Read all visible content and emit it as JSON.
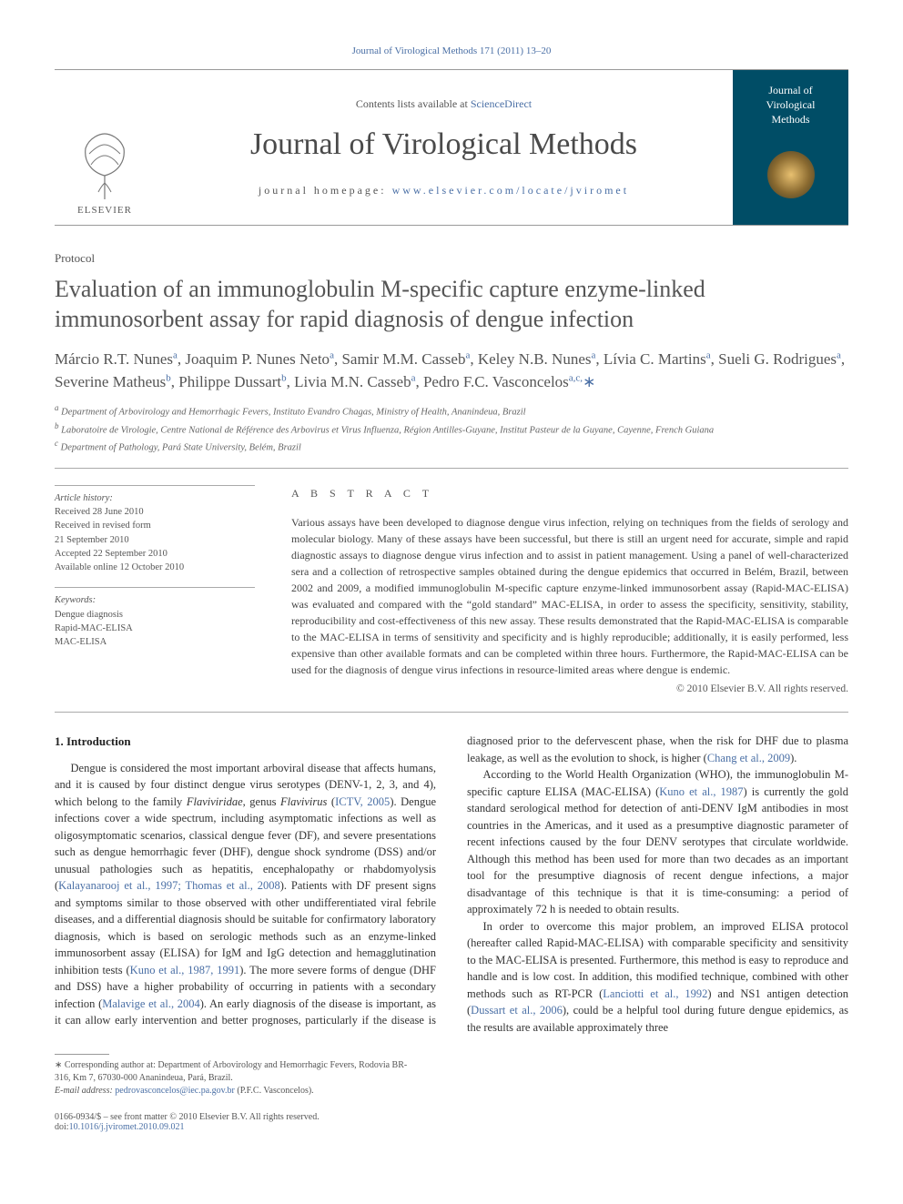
{
  "running_head": "Journal of Virological Methods 171 (2011) 13–20",
  "masthead": {
    "contents_prefix": "Contents lists available at ",
    "contents_link": "ScienceDirect",
    "journal_name": "Journal of Virological Methods",
    "homepage_prefix": "journal homepage: ",
    "homepage_link": "www.elsevier.com/locate/jviromet",
    "elsevier_word": "ELSEVIER",
    "cover_line1": "Journal of",
    "cover_line2": "Virological",
    "cover_line3": "Methods"
  },
  "article": {
    "type": "Protocol",
    "title": "Evaluation of an immunoglobulin M-specific capture enzyme-linked immunosorbent assay for rapid diagnosis of dengue infection",
    "authors_html": "Márcio R.T. Nunes<span class='sup'>a</span>, Joaquim P. Nunes Neto<span class='sup'>a</span>, Samir M.M. Casseb<span class='sup'>a</span>, Keley N.B. Nunes<span class='sup'>a</span>, Lívia C. Martins<span class='sup'>a</span>, Sueli G. Rodrigues<span class='sup'>a</span>, Severine Matheus<span class='sup'>b</span>, Philippe Dussart<span class='sup'>b</span>, Livia M.N. Casseb<span class='sup'>a</span>, Pedro F.C. Vasconcelos<span class='sup'>a,c,</span><span class='star'>∗</span>",
    "affiliations": {
      "a": "Department of Arbovirology and Hemorrhagic Fevers, Instituto Evandro Chagas, Ministry of Health, Ananindeua, Brazil",
      "b": "Laboratoire de Virologie, Centre National de Référence des Arbovirus et Virus Influenza, Région Antilles-Guyane, Institut Pasteur de la Guyane, Cayenne, French Guiana",
      "c": "Department of Pathology, Pará State University, Belém, Brazil"
    }
  },
  "history": {
    "heading": "Article history:",
    "received": "Received 28 June 2010",
    "revised1": "Received in revised form",
    "revised2": "21 September 2010",
    "accepted": "Accepted 22 September 2010",
    "online": "Available online 12 October 2010"
  },
  "keywords": {
    "heading": "Keywords:",
    "k1": "Dengue diagnosis",
    "k2": "Rapid-MAC-ELISA",
    "k3": "MAC-ELISA"
  },
  "abstract": {
    "heading": "A B S T R A C T",
    "text": "Various assays have been developed to diagnose dengue virus infection, relying on techniques from the fields of serology and molecular biology. Many of these assays have been successful, but there is still an urgent need for accurate, simple and rapid diagnostic assays to diagnose dengue virus infection and to assist in patient management. Using a panel of well-characterized sera and a collection of retrospective samples obtained during the dengue epidemics that occurred in Belém, Brazil, between 2002 and 2009, a modified immunoglobulin M-specific capture enzyme-linked immunosorbent assay (Rapid-MAC-ELISA) was evaluated and compared with the “gold standard” MAC-ELISA, in order to assess the specificity, sensitivity, stability, reproducibility and cost-effectiveness of this new assay. These results demonstrated that the Rapid-MAC-ELISA is comparable to the MAC-ELISA in terms of sensitivity and specificity and is highly reproducible; additionally, it is easily performed, less expensive than other available formats and can be completed within three hours. Furthermore, the Rapid-MAC-ELISA can be used for the diagnosis of dengue virus infections in resource-limited areas where dengue is endemic.",
    "copyright": "© 2010 Elsevier B.V. All rights reserved."
  },
  "body": {
    "section_heading": "1.  Introduction",
    "p1a": "Dengue is considered the most important arboviral disease that affects humans, and it is caused by four distinct dengue virus serotypes (DENV-1, 2, 3, and 4), which belong to the family ",
    "p1_it1": "Flaviviridae",
    "p1b": ", genus ",
    "p1_it2": "Flavivirus",
    "p1c": " (",
    "p1_link1": "ICTV, 2005",
    "p1d": "). Dengue infections cover a wide spectrum, including asymptomatic infections as well as oligosymptomatic scenarios, classical dengue fever (DF), and severe presentations such as dengue hemorrhagic fever (DHF), dengue shock syndrome (DSS) and/or unusual pathologies such as hepatitis, encephalopathy or rhabdomyolysis (",
    "p1_link2": "Kalayanarooj et al., 1997; Thomas et al., 2008",
    "p1e": "). Patients with DF present signs and symptoms similar to those observed with other undifferentiated viral febrile diseases, and a differential diagnosis should be suitable for confirmatory laboratory diagnosis, which is based on serologic methods such as an enzyme-linked immunosorbent assay (ELISA) for IgM and IgG detection and hemagglutination inhibition tests (",
    "p1_link3": "Kuno et al., 1987, 1991",
    "p1f": "). The more severe forms of dengue (DHF and DSS) have a higher probability of occurring in patients with a secondary",
    "p2a": "infection (",
    "p2_link1": "Malavige et al., 2004",
    "p2b": "). An early diagnosis of the disease is important, as it can allow early intervention and better prognoses, particularly if the disease is diagnosed prior to the defervescent phase, when the risk for DHF due to plasma leakage, as well as the evolution to shock, is higher (",
    "p2_link2": "Chang et al., 2009",
    "p2c": ").",
    "p3a": "According to the World Health Organization (WHO), the immunoglobulin M-specific capture ELISA (MAC-ELISA) (",
    "p3_link1": "Kuno et al., 1987",
    "p3b": ") is currently the gold standard serological method for detection of anti-DENV IgM antibodies in most countries in the Americas, and it used as a presumptive diagnostic parameter of recent infections caused by the four DENV serotypes that circulate worldwide. Although this method has been used for more than two decades as an important tool for the presumptive diagnosis of recent dengue infections, a major disadvantage of this technique is that it is time-consuming: a period of approximately 72 h is needed to obtain results.",
    "p4a": "In order to overcome this major problem, an improved ELISA protocol (hereafter called Rapid-MAC-ELISA) with comparable specificity and sensitivity to the MAC-ELISA is presented. Furthermore, this method is easy to reproduce and handle and is low cost. In addition, this modified technique, combined with other methods such as RT-PCR (",
    "p4_link1": "Lanciotti et al., 1992",
    "p4b": ") and NS1 antigen detection (",
    "p4_link2": "Dussart et al., 2006",
    "p4c": "), could be a helpful tool during future dengue epidemics, as the results are available approximately three"
  },
  "footnote": {
    "star": "∗",
    "corr": " Corresponding author at: Department of Arbovirology and Hemorrhagic Fevers, Rodovia BR-316, Km 7, 67030-000 Ananindeua, Pará, Brazil.",
    "email_label": "E-mail address: ",
    "email": "pedrovasconcelos@iec.pa.gov.br",
    "email_who": " (P.F.C. Vasconcelos)."
  },
  "bottom": {
    "issn": "0166-0934/$ – see front matter © 2010 Elsevier B.V. All rights reserved.",
    "doi_label": "doi:",
    "doi": "10.1016/j.jviromet.2010.09.021"
  },
  "colors": {
    "link": "#4a6fa5",
    "text": "#333333",
    "muted": "#555555",
    "cover_bg": "#004d66"
  }
}
